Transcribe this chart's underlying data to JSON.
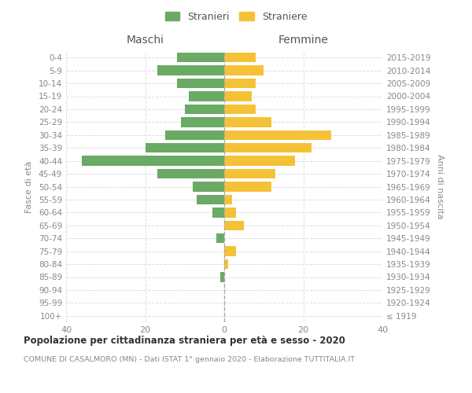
{
  "age_groups": [
    "100+",
    "95-99",
    "90-94",
    "85-89",
    "80-84",
    "75-79",
    "70-74",
    "65-69",
    "60-64",
    "55-59",
    "50-54",
    "45-49",
    "40-44",
    "35-39",
    "30-34",
    "25-29",
    "20-24",
    "15-19",
    "10-14",
    "5-9",
    "0-4"
  ],
  "birth_years": [
    "≤ 1919",
    "1920-1924",
    "1925-1929",
    "1930-1934",
    "1935-1939",
    "1940-1944",
    "1945-1949",
    "1950-1954",
    "1955-1959",
    "1960-1964",
    "1965-1969",
    "1970-1974",
    "1975-1979",
    "1980-1984",
    "1985-1989",
    "1990-1994",
    "1995-1999",
    "2000-2004",
    "2005-2009",
    "2010-2014",
    "2015-2019"
  ],
  "maschi": [
    0,
    0,
    0,
    1,
    0,
    0,
    2,
    0,
    3,
    7,
    8,
    17,
    36,
    20,
    15,
    11,
    10,
    9,
    12,
    17,
    12
  ],
  "femmine": [
    0,
    0,
    0,
    0,
    1,
    3,
    0,
    5,
    3,
    2,
    12,
    13,
    18,
    22,
    27,
    12,
    8,
    7,
    8,
    10,
    8
  ],
  "color_maschi": "#6aaa64",
  "color_femmine": "#f5c237",
  "title": "Popolazione per cittadinanza straniera per età e sesso - 2020",
  "subtitle": "COMUNE DI CASALMORO (MN) - Dati ISTAT 1° gennaio 2020 - Elaborazione TUTTITALIA.IT",
  "ylabel_left": "Fasce di età",
  "ylabel_right": "Anni di nascita",
  "xlabel_left": "Maschi",
  "xlabel_right": "Femmine",
  "legend_stranieri": "Stranieri",
  "legend_straniere": "Straniere",
  "xlim": 40,
  "background_color": "#ffffff"
}
